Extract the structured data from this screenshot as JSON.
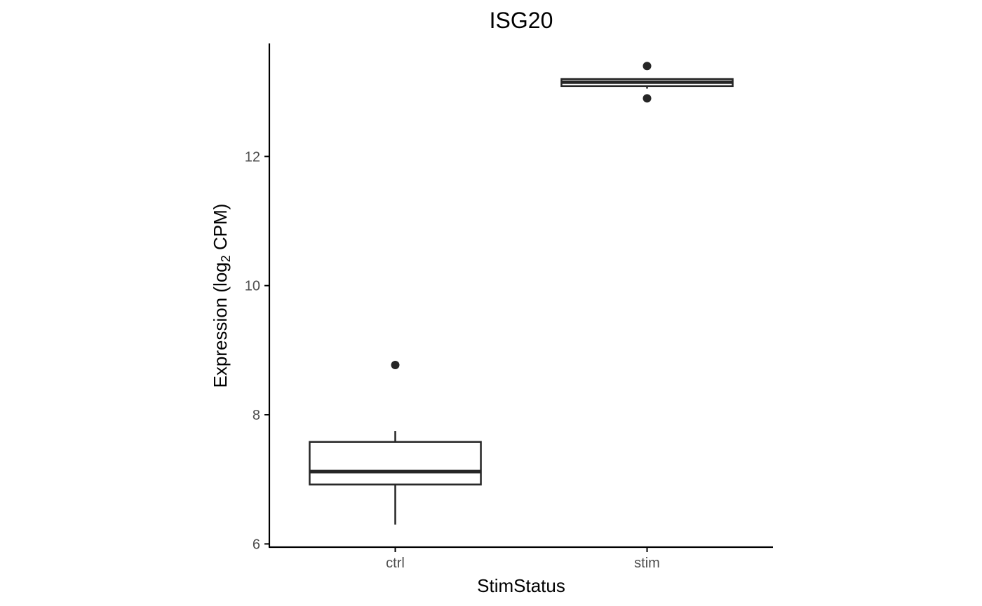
{
  "chart_data": {
    "type": "box",
    "title": "ISG20",
    "xlabel": "StimStatus",
    "ylabel": {
      "prefix": "Expression (log",
      "subscript": "2",
      "suffix": " CPM)"
    },
    "ylim": [
      5.95,
      13.75
    ],
    "yticks": [
      6,
      8,
      10,
      12
    ],
    "categories": [
      "ctrl",
      "stim"
    ],
    "boxes": [
      {
        "category": "ctrl",
        "whisker_low": 6.3,
        "q1": 6.92,
        "median": 7.12,
        "q3": 7.58,
        "whisker_high": 7.75,
        "outliers": [
          8.77
        ]
      },
      {
        "category": "stim",
        "whisker_low": 13.05,
        "q1": 13.09,
        "median": 13.15,
        "q3": 13.2,
        "whisker_high": 13.2,
        "outliers": [
          13.4,
          12.9
        ]
      }
    ],
    "grid": false,
    "legend": "none"
  }
}
